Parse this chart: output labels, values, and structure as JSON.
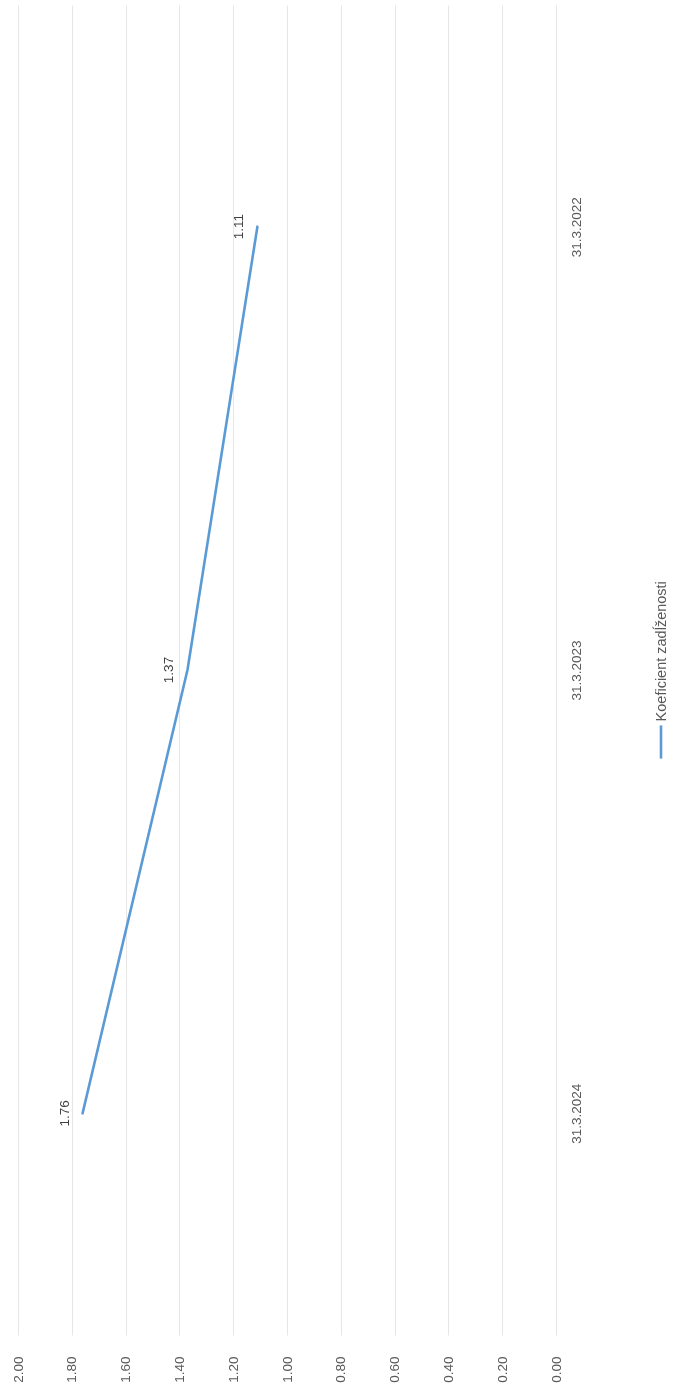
{
  "chart_data": {
    "type": "line",
    "orientation": "horizontal",
    "categories": [
      "31.3.2022",
      "31.3.2023",
      "31.3.2024"
    ],
    "series": [
      {
        "name": "Koeficient zadĺženosti",
        "color": "#5b9bd5",
        "values": [
          1.11,
          1.37,
          1.76
        ]
      }
    ],
    "xlim": [
      2,
      0
    ],
    "xticks": [
      {
        "value": 2,
        "label": "2.00"
      },
      {
        "value": 1.8,
        "label": "1.80"
      },
      {
        "value": 1.6,
        "label": "1.60"
      },
      {
        "value": 1.4,
        "label": "1.40"
      },
      {
        "value": 1.2,
        "label": "1.20"
      },
      {
        "value": 1,
        "label": "1.00"
      },
      {
        "value": 0.8,
        "label": "0.80"
      },
      {
        "value": 0.6,
        "label": "0.60"
      },
      {
        "value": 0.4,
        "label": "0.40"
      },
      {
        "value": 0.2,
        "label": "0.20"
      },
      {
        "value": 0,
        "label": "0.00"
      }
    ],
    "grid": "x",
    "data_labels": true,
    "legend": "right"
  }
}
